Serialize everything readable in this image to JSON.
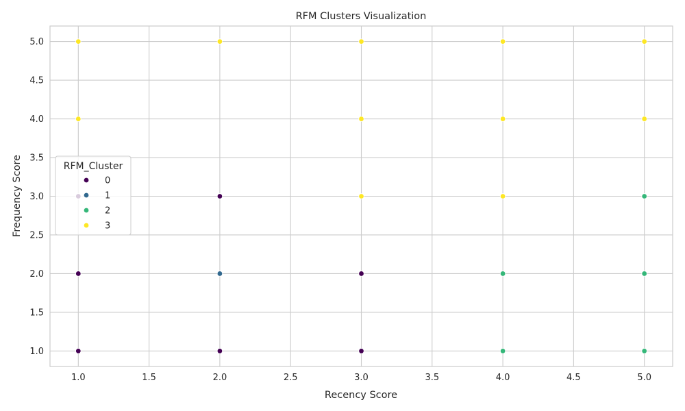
{
  "chart_data": {
    "type": "scatter",
    "title": "RFM Clusters Visualization",
    "xlabel": "Recency Score",
    "ylabel": "Frequency Score",
    "xlim": [
      0.8,
      5.2
    ],
    "ylim": [
      0.8,
      5.2
    ],
    "xticks": [
      "1.0",
      "1.5",
      "2.0",
      "2.5",
      "3.0",
      "3.5",
      "4.0",
      "4.5",
      "5.0"
    ],
    "yticks": [
      "1.0",
      "1.5",
      "2.0",
      "2.5",
      "3.0",
      "3.5",
      "4.0",
      "4.5",
      "5.0"
    ],
    "grid": true,
    "legend": {
      "title": "RFM_Cluster",
      "placement": "center-left"
    },
    "series": [
      {
        "name": "0",
        "color": "#440154",
        "points": [
          [
            1,
            1
          ],
          [
            1,
            2
          ],
          [
            1,
            3
          ],
          [
            2,
            1
          ],
          [
            2,
            3
          ],
          [
            3,
            1
          ],
          [
            3,
            2
          ]
        ]
      },
      {
        "name": "1",
        "color": "#31688e",
        "points": [
          [
            2,
            2
          ]
        ]
      },
      {
        "name": "2",
        "color": "#35b779",
        "points": [
          [
            4,
            1
          ],
          [
            4,
            2
          ],
          [
            5,
            1
          ],
          [
            5,
            2
          ],
          [
            5,
            3
          ]
        ]
      },
      {
        "name": "3",
        "color": "#fde725",
        "points": [
          [
            1,
            4
          ],
          [
            1,
            5
          ],
          [
            2,
            5
          ],
          [
            3,
            3
          ],
          [
            3,
            4
          ],
          [
            3,
            5
          ],
          [
            4,
            3
          ],
          [
            4,
            4
          ],
          [
            4,
            5
          ],
          [
            5,
            4
          ],
          [
            5,
            5
          ]
        ]
      }
    ]
  }
}
